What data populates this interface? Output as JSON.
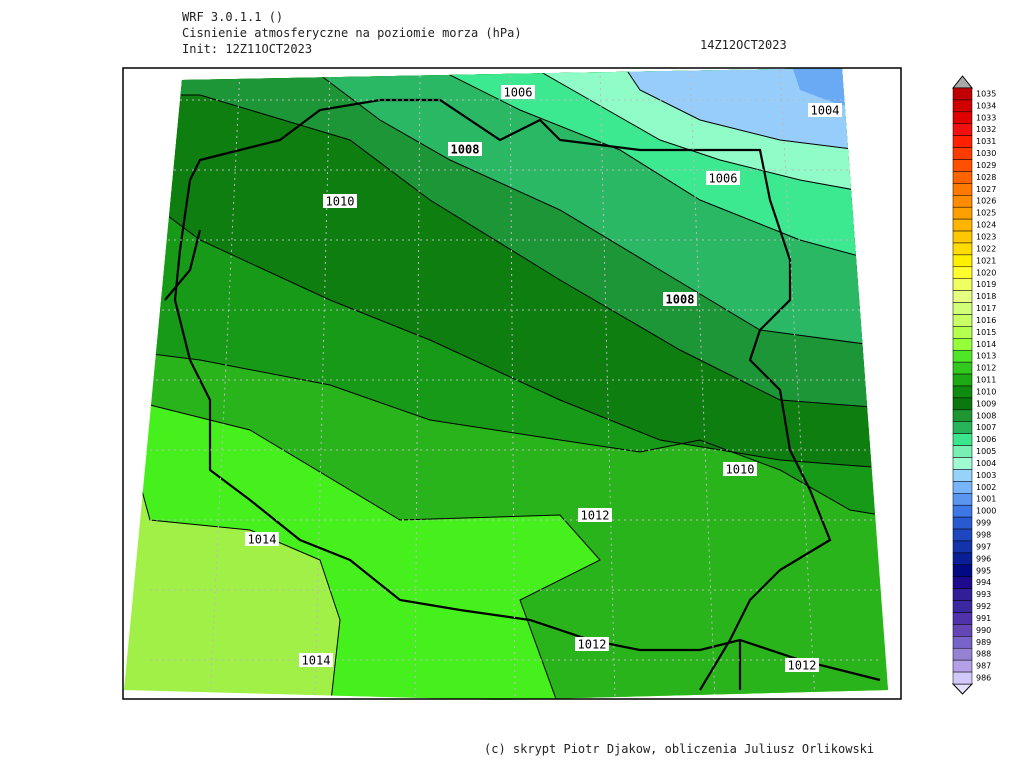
{
  "header": {
    "model": "WRF 3.0.1.1 ()",
    "title": "Cisnienie atmosferyczne na poziomie morza (hPa)",
    "init": "Init: 12Z11OCT2023",
    "valid": "14Z12OCT2023"
  },
  "map": {
    "contour_labels": [
      "1006",
      "1004",
      "1008",
      "1006",
      "1010",
      "1008",
      "1010",
      "1012",
      "1014",
      "1012",
      "1012",
      "1014"
    ]
  },
  "colorbar": {
    "levels": [
      1035,
      1034,
      1033,
      1032,
      1031,
      1030,
      1029,
      1028,
      1027,
      1026,
      1025,
      1024,
      1023,
      1022,
      1021,
      1020,
      1019,
      1018,
      1017,
      1016,
      1015,
      1014,
      1013,
      1012,
      1011,
      1010,
      1009,
      1008,
      1007,
      1006,
      1005,
      1004,
      1003,
      1002,
      1001,
      1000,
      999,
      998,
      997,
      996,
      995,
      994,
      993,
      992,
      991,
      990,
      989,
      988,
      987,
      986
    ],
    "colors": [
      "#c00000",
      "#d00000",
      "#e00000",
      "#f01010",
      "#ff2000",
      "#ff3c00",
      "#ff5000",
      "#ff6400",
      "#ff7800",
      "#ff8c00",
      "#ffa000",
      "#ffb400",
      "#ffc800",
      "#ffdc00",
      "#fff000",
      "#ffff30",
      "#f0ff60",
      "#e6ff80",
      "#d2ff78",
      "#c8ff64",
      "#b4ff50",
      "#96ff3c",
      "#50e628",
      "#32c81e",
      "#1eaa14",
      "#0f8c0f",
      "#0a780f",
      "#1e9632",
      "#28b45a",
      "#3ce68c",
      "#78f0b4",
      "#a0fad2",
      "#96d2fa",
      "#78b4fa",
      "#5a96f0",
      "#3c78e6",
      "#2a5ad2",
      "#1e46be",
      "#1432aa",
      "#0a1e96",
      "#000a82",
      "#1e0a8c",
      "#321e96",
      "#3c28a0",
      "#5032aa",
      "#6446b4",
      "#7864c8",
      "#9682d2",
      "#b4a0e6",
      "#d2c8fa"
    ]
  },
  "footer": "(c) skrypt Piotr Djakow, obliczenia Juliusz Orlikowski"
}
